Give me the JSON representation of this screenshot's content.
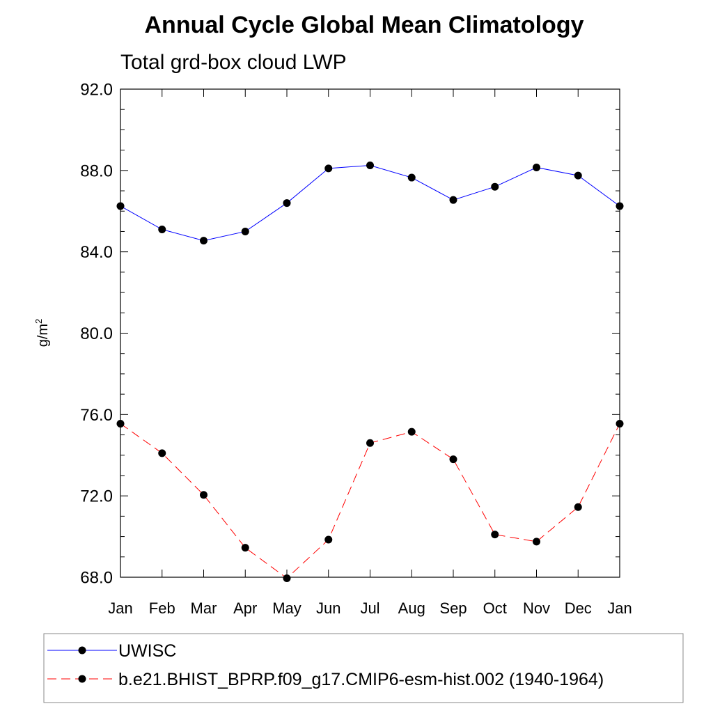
{
  "chart_data": {
    "type": "line",
    "title": "Annual Cycle Global Mean Climatology",
    "subtitle": "Total grd-box cloud LWP",
    "ylabel": "g/m",
    "ylabel_superscript": "2",
    "ylim": [
      68.0,
      92.0
    ],
    "yticks": [
      "68.0",
      "72.0",
      "76.0",
      "80.0",
      "84.0",
      "88.0",
      "92.0"
    ],
    "categories": [
      "Jan",
      "Feb",
      "Mar",
      "Apr",
      "May",
      "Jun",
      "Jul",
      "Aug",
      "Sep",
      "Oct",
      "Nov",
      "Dec",
      "Jan"
    ],
    "series": [
      {
        "name": "UWISC",
        "color": "#0000ff",
        "dashed": false,
        "values": [
          86.25,
          85.1,
          84.55,
          85.0,
          86.4,
          88.1,
          88.25,
          87.65,
          86.55,
          87.2,
          88.15,
          87.75,
          86.25
        ]
      },
      {
        "name": "b.e21.BHIST_BPRP.f09_g17.CMIP6-esm-hist.002 (1940-1964)",
        "color": "#ff0000",
        "dashed": true,
        "values": [
          75.55,
          74.1,
          72.05,
          69.45,
          67.95,
          69.85,
          74.6,
          75.15,
          73.8,
          70.1,
          69.75,
          71.45,
          75.55
        ]
      }
    ],
    "grid": false,
    "legend_position": "bottom"
  }
}
